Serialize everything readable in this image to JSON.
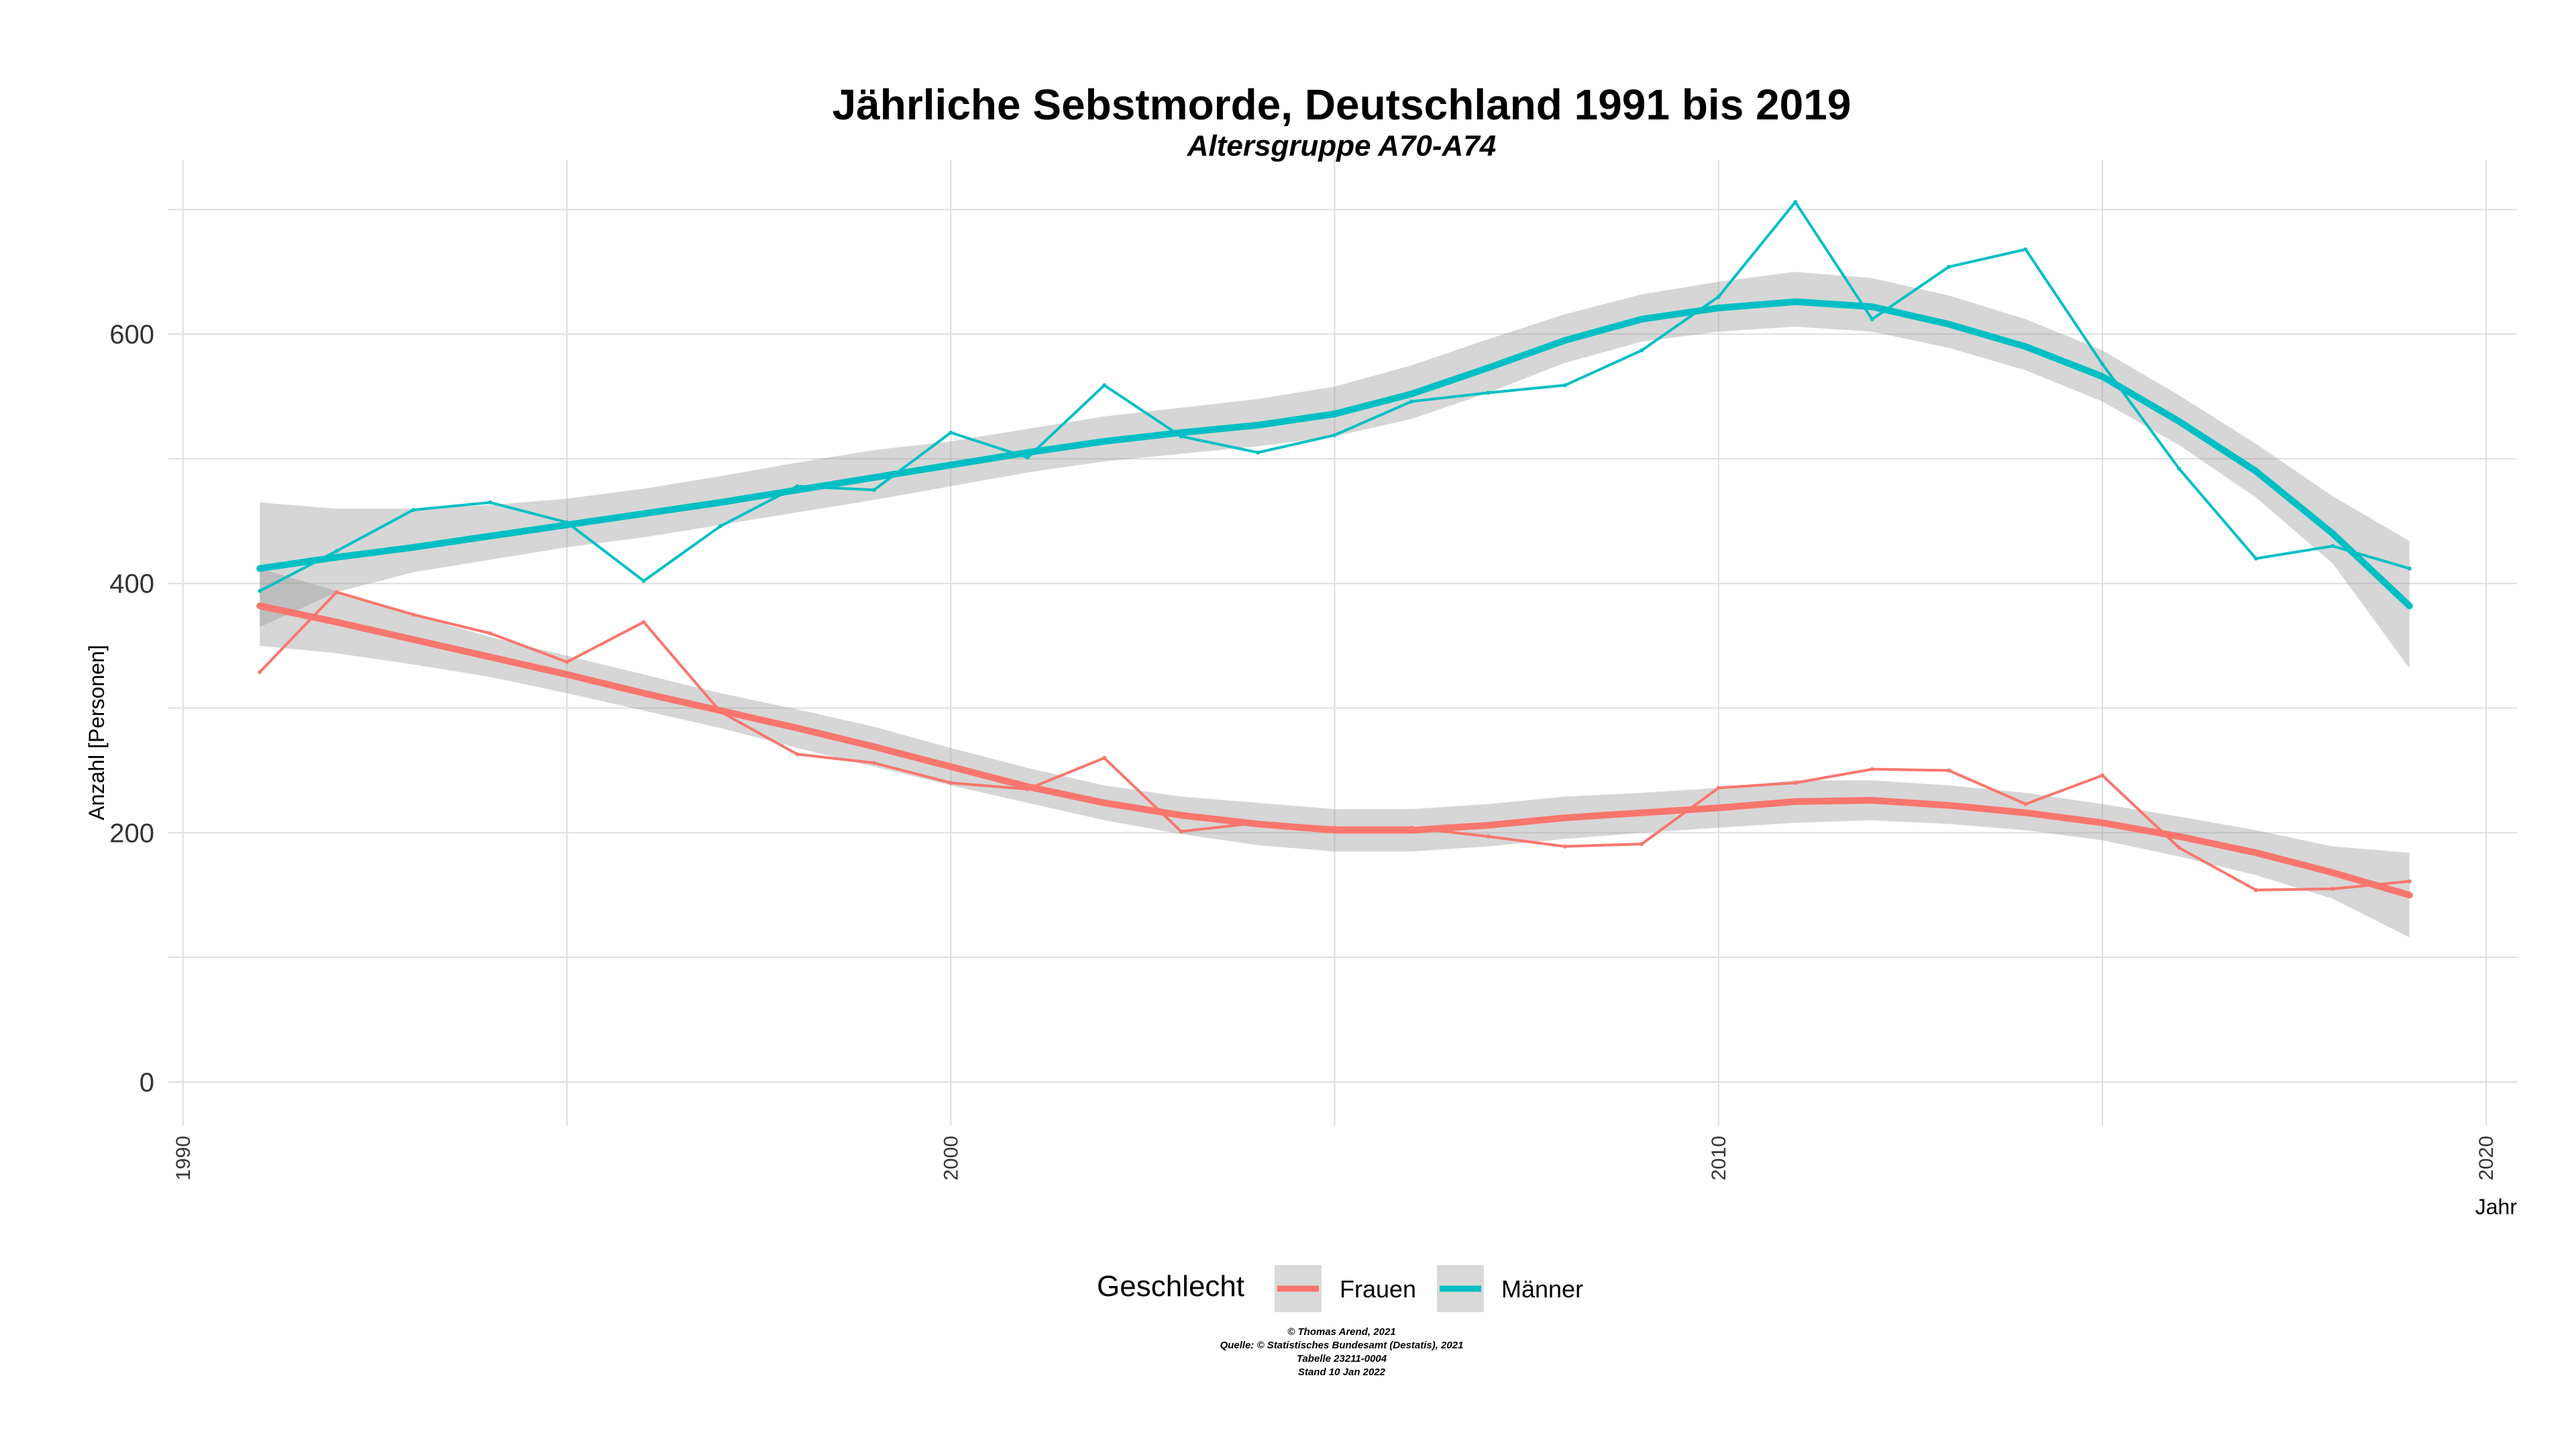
{
  "chart_data": {
    "type": "line",
    "title": "Jährliche Sebstmorde, Deutschland 1991 bis 2019",
    "subtitle": "Altersgruppe A70-A74",
    "xlabel": "Jahr",
    "ylabel": "Anzahl [Personen]",
    "xlim": [
      1989.8,
      2020.4
    ],
    "ylim": [
      -35,
      740
    ],
    "x_ticks": [
      1990,
      2000,
      2010,
      2020
    ],
    "x_tick_labels": [
      "1990",
      "2000",
      "2010",
      "2020"
    ],
    "y_ticks": [
      0,
      200,
      400,
      600
    ],
    "y_tick_labels": [
      "0",
      "200",
      "400",
      "600"
    ],
    "grid": true,
    "legend": {
      "title": "Geschlecht",
      "position": "bottom"
    },
    "x": [
      1991,
      1992,
      1993,
      1994,
      1995,
      1996,
      1997,
      1998,
      1999,
      2000,
      2001,
      2002,
      2003,
      2004,
      2005,
      2006,
      2007,
      2008,
      2009,
      2010,
      2011,
      2012,
      2013,
      2014,
      2015,
      2016,
      2017,
      2018,
      2019
    ],
    "series": [
      {
        "name": "Frauen",
        "color": "#F8766D",
        "values": [
          329,
          393,
          375,
          360,
          337,
          369,
          297,
          263,
          256,
          240,
          235,
          260,
          201,
          208,
          204,
          204,
          197,
          189,
          191,
          236,
          240,
          251,
          250,
          223,
          246,
          188,
          154,
          155,
          161
        ],
        "smooth": [
          382,
          369,
          355,
          341,
          327,
          312,
          298,
          284,
          269,
          253,
          237,
          224,
          214,
          207,
          202,
          202,
          206,
          212,
          216,
          220,
          225,
          226,
          222,
          216,
          208,
          197,
          184,
          168,
          150
        ],
        "ci_lower": [
          350,
          344,
          335,
          325,
          312,
          298,
          284,
          268,
          253,
          238,
          224,
          210,
          199,
          190,
          185,
          185,
          189,
          195,
          200,
          204,
          208,
          210,
          207,
          202,
          194,
          181,
          166,
          147,
          116
        ],
        "ci_upper": [
          412,
          394,
          375,
          357,
          342,
          327,
          312,
          299,
          285,
          268,
          252,
          238,
          229,
          224,
          219,
          219,
          223,
          229,
          232,
          236,
          242,
          242,
          238,
          232,
          223,
          213,
          202,
          189,
          184
        ]
      },
      {
        "name": "Männer",
        "color": "#00BFC4",
        "values": [
          394,
          426,
          459,
          465,
          449,
          402,
          446,
          478,
          475,
          521,
          501,
          559,
          518,
          505,
          519,
          546,
          553,
          559,
          587,
          630,
          706,
          612,
          654,
          668,
          576,
          492,
          420,
          430,
          412
        ],
        "smooth": [
          412,
          421,
          429,
          438,
          447,
          456,
          465,
          475,
          485,
          495,
          505,
          514,
          521,
          527,
          536,
          552,
          573,
          595,
          612,
          621,
          626,
          622,
          608,
          590,
          566,
          530,
          490,
          440,
          382
        ],
        "ci_lower": [
          365,
          393,
          409,
          419,
          429,
          437,
          447,
          457,
          467,
          478,
          489,
          498,
          504,
          510,
          518,
          532,
          553,
          577,
          594,
          602,
          606,
          602,
          589,
          571,
          546,
          511,
          469,
          416,
          332
        ],
        "ci_upper": [
          465,
          460,
          460,
          463,
          468,
          476,
          486,
          497,
          507,
          514,
          524,
          534,
          541,
          548,
          558,
          575,
          596,
          616,
          632,
          642,
          650,
          645,
          631,
          612,
          587,
          551,
          512,
          470,
          434
        ]
      }
    ]
  },
  "caption": [
    "© Thomas Arend, 2021",
    "Quelle: © Statistisches Bundesamt (Destatis), 2021",
    "Tabelle 23211-0004",
    "Stand 10 Jan 2022"
  ]
}
